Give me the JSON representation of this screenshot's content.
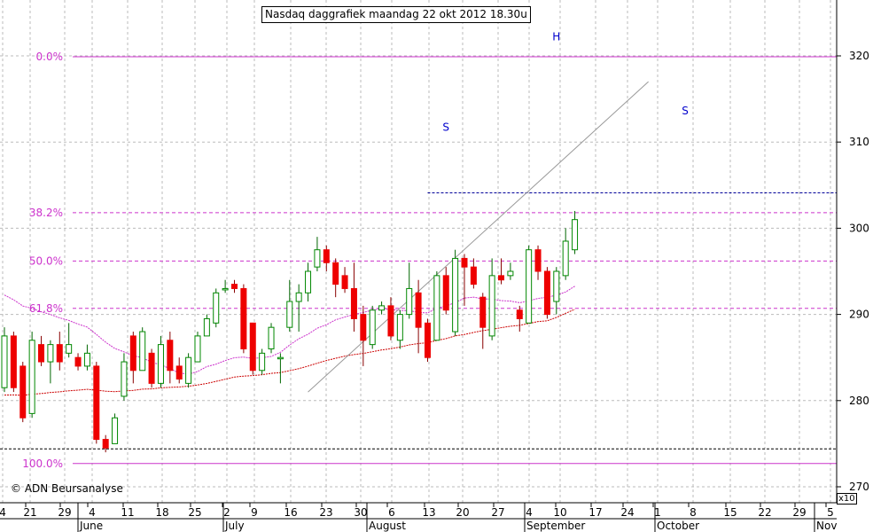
{
  "title": "Nasdaq daggrafiek maandag 22 okt 2012 18.30u",
  "copyright": "© ADN Beursanalyse",
  "scale_marker": "x10",
  "colors": {
    "up": "#00aa00",
    "down": "#ee0000",
    "fib": "#cc33cc",
    "ma_short": "#cc33cc",
    "ma_long": "#cc0000",
    "support": "#000099",
    "pattern_label": "#0000cc",
    "grid": "#bbbbbb"
  },
  "chart_data": {
    "type": "candlestick",
    "title": "Nasdaq daggrafiek maandag 22 okt 2012 18.30u",
    "y_axis": {
      "position": "right",
      "range": [
        270,
        323
      ],
      "ticks": [
        270,
        280,
        290,
        300,
        310,
        320
      ]
    },
    "x_tick_labels": [
      "4",
      "21",
      "29",
      "4",
      "11",
      "18",
      "25",
      "2",
      "9",
      "16",
      "23",
      "30",
      "6",
      "13",
      "20",
      "27",
      "4",
      "10",
      "17",
      "24",
      "1",
      "8",
      "15",
      "22",
      "29",
      "5"
    ],
    "month_labels": [
      "June",
      "July",
      "August",
      "September",
      "October",
      "Nov"
    ],
    "grid": true,
    "fib_levels": [
      {
        "label": "0.0%",
        "value": 319.9
      },
      {
        "label": "38.2%",
        "value": 301.8
      },
      {
        "label": "50.0%",
        "value": 296.2
      },
      {
        "label": "61.8%",
        "value": 290.7
      },
      {
        "label": "100.0%",
        "value": 272.7
      }
    ],
    "support_lines": [
      {
        "value": 304.1,
        "from": 46,
        "to": 82
      },
      {
        "value": 274.4,
        "from": 0,
        "to": 82
      }
    ],
    "annotations": [
      {
        "text": "S",
        "i": 48,
        "value": 311.3
      },
      {
        "text": "H",
        "i": 60,
        "value": 321.8
      },
      {
        "text": "S",
        "i": 74,
        "value": 313.2
      }
    ],
    "candles": [
      [
        281.5,
        287.5,
        288.5,
        281.0
      ],
      [
        287.5,
        281.5,
        288.0,
        281.0
      ],
      [
        284.0,
        278.0,
        284.5,
        277.5
      ],
      [
        278.5,
        287.0,
        288.0,
        278.0
      ],
      [
        286.5,
        284.5,
        287.5,
        284.0
      ],
      [
        284.5,
        286.5,
        287.0,
        282.0
      ],
      [
        286.5,
        284.5,
        288.0,
        283.5
      ],
      [
        285.5,
        286.5,
        289.0,
        285.0
      ],
      [
        285.0,
        284.0,
        285.5,
        283.5
      ],
      [
        284.0,
        285.5,
        286.5,
        283.5
      ],
      [
        284.0,
        275.5,
        284.5,
        275.0
      ],
      [
        275.5,
        274.5,
        276.0,
        274.0
      ],
      [
        275.0,
        278.0,
        278.5,
        275.0
      ],
      [
        280.5,
        284.5,
        285.5,
        280.0
      ],
      [
        287.5,
        283.5,
        288.0,
        282.0
      ],
      [
        283.5,
        288.0,
        288.5,
        283.5
      ],
      [
        285.5,
        282.0,
        286.0,
        281.5
      ],
      [
        282.0,
        286.5,
        287.5,
        281.5
      ],
      [
        287.0,
        283.5,
        288.0,
        282.0
      ],
      [
        284.0,
        282.5,
        285.0,
        282.0
      ],
      [
        282.0,
        285.0,
        285.5,
        281.5
      ],
      [
        284.5,
        287.5,
        288.0,
        284.5
      ],
      [
        287.5,
        289.5,
        290.0,
        287.5
      ],
      [
        289.0,
        292.5,
        293.0,
        288.5
      ],
      [
        293.0,
        293.0,
        294.0,
        292.5
      ],
      [
        293.5,
        293.0,
        294.0,
        292.5
      ],
      [
        293.0,
        286.0,
        293.5,
        285.5
      ],
      [
        289.0,
        283.5,
        289.0,
        283.0
      ],
      [
        283.5,
        285.5,
        286.0,
        283.0
      ],
      [
        286.0,
        288.5,
        289.0,
        285.5
      ],
      [
        285.0,
        285.0,
        285.5,
        282.0
      ],
      [
        288.5,
        291.5,
        294.0,
        288.0
      ],
      [
        291.5,
        292.5,
        293.5,
        288.0
      ],
      [
        292.5,
        295.0,
        296.0,
        291.5
      ],
      [
        295.5,
        297.5,
        299.0,
        295.0
      ],
      [
        297.5,
        296.0,
        298.0,
        295.0
      ],
      [
        296.0,
        293.5,
        296.5,
        292.0
      ],
      [
        294.5,
        293.0,
        295.5,
        292.5
      ],
      [
        293.0,
        289.5,
        296.0,
        288.0
      ],
      [
        290.0,
        287.0,
        291.0,
        284.0
      ],
      [
        286.5,
        290.5,
        291.0,
        286.0
      ],
      [
        290.5,
        291.0,
        291.5,
        290.0
      ],
      [
        291.0,
        287.5,
        292.0,
        287.0
      ],
      [
        287.0,
        290.0,
        290.5,
        286.0
      ],
      [
        290.0,
        293.0,
        296.0,
        289.5
      ],
      [
        292.5,
        288.5,
        294.0,
        285.5
      ],
      [
        289.0,
        285.0,
        289.5,
        284.5
      ],
      [
        287.0,
        294.5,
        295.0,
        287.0
      ],
      [
        294.5,
        290.5,
        295.5,
        290.0
      ],
      [
        288.0,
        296.5,
        297.5,
        287.5
      ],
      [
        296.5,
        295.5,
        297.0,
        291.0
      ],
      [
        295.5,
        293.5,
        296.5,
        293.0
      ],
      [
        292.0,
        288.5,
        292.5,
        286.0
      ],
      [
        287.5,
        294.5,
        296.5,
        287.0
      ],
      [
        294.5,
        294.0,
        296.5,
        293.5
      ],
      [
        294.5,
        295.0,
        296.0,
        294.0
      ],
      [
        290.5,
        289.5,
        291.0,
        288.0
      ],
      [
        289.0,
        297.5,
        298.0,
        289.0
      ],
      [
        297.5,
        295.0,
        298.0,
        294.0
      ],
      [
        295.0,
        290.0,
        295.5,
        289.5
      ],
      [
        291.5,
        295.0,
        295.5,
        290.0
      ],
      [
        294.5,
        298.5,
        300.0,
        294.0
      ],
      [
        297.5,
        301.0,
        302.0,
        297.0
      ]
    ]
  }
}
